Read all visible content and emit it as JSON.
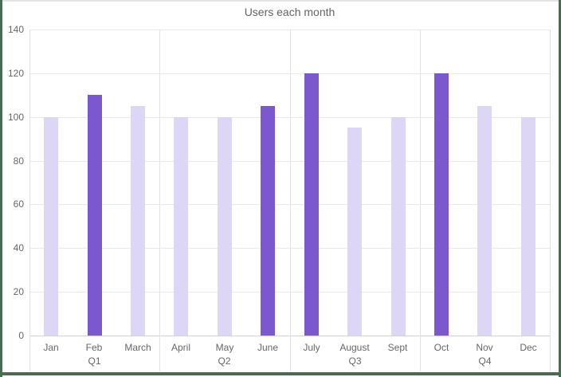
{
  "frame": {
    "border_green": "#4A6B51",
    "border_top_gray": "#E4E4E4"
  },
  "chart_data": {
    "type": "bar",
    "title": "Users each month",
    "categories": [
      "Jan",
      "Feb",
      "March",
      "April",
      "May",
      "June",
      "July",
      "August",
      "Sept",
      "Oct",
      "Nov",
      "Dec"
    ],
    "values": [
      100,
      110,
      105,
      100,
      100,
      105,
      120,
      95,
      100,
      120,
      105,
      100
    ],
    "emphasized": [
      false,
      true,
      false,
      false,
      false,
      true,
      true,
      false,
      false,
      true,
      false,
      false
    ],
    "group_labels": [
      "Q1",
      "Q2",
      "Q3",
      "Q4"
    ],
    "months_per_group": 3,
    "xlabel": "",
    "ylabel": "",
    "ylim": [
      0,
      140
    ],
    "yticks": [
      0,
      20,
      40,
      60,
      80,
      100,
      120,
      140
    ],
    "grid": true,
    "legend": "none",
    "colors": {
      "bar_default": "#DDD6F4",
      "bar_emphasis": "#7B58CE",
      "gridline": "#E9E9E9",
      "divider_line": "#E2E2E2",
      "axis_line": "#D2D2D2",
      "title_text": "#5F6368",
      "tick_text": "#666666",
      "background": "#FFFFFF"
    }
  }
}
